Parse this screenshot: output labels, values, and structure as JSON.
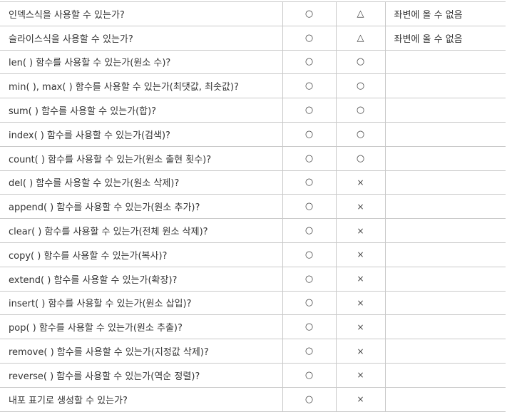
{
  "rows": [
    {
      "question": "인덱스식을 사용할 수 있는가?",
      "col1": "○",
      "col2": "△",
      "note": "좌변에 올 수 없음"
    },
    {
      "question": "슬라이스식을 사용할 수 있는가?",
      "col1": "○",
      "col2": "△",
      "note": "좌변에 올 수 없음"
    },
    {
      "question": "len( ) 함수를 사용할 수 있는가(원소 수)?",
      "col1": "○",
      "col2": "○",
      "note": ""
    },
    {
      "question": "min( ), max( ) 함수를 사용할 수 있는가(최댓값, 최솟값)?",
      "col1": "○",
      "col2": "○",
      "note": ""
    },
    {
      "question": "sum( ) 함수를 사용할 수 있는가(합)?",
      "col1": "○",
      "col2": "○",
      "note": ""
    },
    {
      "question": "index( ) 함수를 사용할 수 있는가(검색)?",
      "col1": "○",
      "col2": "○",
      "note": ""
    },
    {
      "question": "count( ) 함수를 사용할 수 있는가(원소 출현 횟수)?",
      "col1": "○",
      "col2": "○",
      "note": ""
    },
    {
      "question": "del( ) 함수를 사용할 수 있는가(원소 삭제)?",
      "col1": "○",
      "col2": "×",
      "note": ""
    },
    {
      "question": "append( ) 함수를 사용할 수 있는가(원소 추가)?",
      "col1": "○",
      "col2": "×",
      "note": ""
    },
    {
      "question": "clear( ) 함수를 사용할 수 있는가(전체 원소 삭제)?",
      "col1": "○",
      "col2": "×",
      "note": ""
    },
    {
      "question": "copy( ) 함수를 사용할 수 있는가(복사)?",
      "col1": "○",
      "col2": "×",
      "note": ""
    },
    {
      "question": "extend( ) 함수를 사용할 수 있는가(확장)?",
      "col1": "○",
      "col2": "×",
      "note": ""
    },
    {
      "question": "insert( ) 함수를 사용할 수 있는가(원소 삽입)?",
      "col1": "○",
      "col2": "×",
      "note": ""
    },
    {
      "question": "pop( ) 함수를 사용할 수 있는가(원소 추출)?",
      "col1": "○",
      "col2": "×",
      "note": ""
    },
    {
      "question": "remove( ) 함수를 사용할 수 있는가(지정값 삭제)?",
      "col1": "○",
      "col2": "×",
      "note": ""
    },
    {
      "question": "reverse( ) 함수를 사용할 수 있는가(역순 정렬)?",
      "col1": "○",
      "col2": "×",
      "note": ""
    },
    {
      "question": "내포 표기로 생성할 수 있는가?",
      "col1": "○",
      "col2": "×",
      "note": ""
    }
  ]
}
